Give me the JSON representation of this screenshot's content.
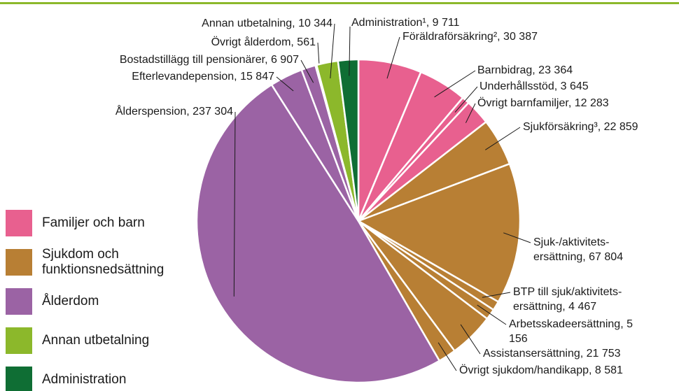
{
  "chart_data": {
    "type": "pie",
    "categories": [
      "Föräldraförsäkring²",
      "Barnbidrag",
      "Underhållsstöd",
      "Övrigt barnfamiljer",
      "Sjukförsäkring³",
      "Sjuk-/aktivitets-\nersättning",
      "BTP till sjuk/aktivitets-\nersättning",
      "Arbetsskadeersättning",
      "Assistansersättning",
      "Övrigt sjukdom/handikapp",
      "Ålderspension",
      "Efterlevandepension",
      "Bostadstillägg till pensionärer",
      "Övrigt ålderdom",
      "Annan utbetalning",
      "Administration¹"
    ],
    "values": [
      30387,
      23364,
      3645,
      12283,
      22859,
      67804,
      4467,
      5156,
      21753,
      8581,
      237304,
      15847,
      6907,
      561,
      10344,
      9711
    ],
    "value_labels": [
      "30 387",
      "23 364",
      "3 645",
      "12 283",
      "22 859",
      "67 804",
      "4 467",
      "5 156",
      "21 753",
      "8 581",
      "237 304",
      "15 847",
      "6 907",
      "561",
      "10 344",
      "9 711"
    ],
    "separator": ", ",
    "colors": [
      "#e8608f",
      "#e8608f",
      "#e8608f",
      "#e8608f",
      "#b87f34",
      "#b87f34",
      "#b87f34",
      "#b87f34",
      "#b87f34",
      "#b87f34",
      "#9b63a4",
      "#9b63a4",
      "#9b63a4",
      "#9b63a4",
      "#8cb82b",
      "#0f6e34"
    ],
    "legend": [
      {
        "name": "Familjer och barn",
        "color": "#e8608f"
      },
      {
        "name": "Sjukdom och funktionsnedsättning",
        "color": "#b87f34"
      },
      {
        "name": "Ålderdom",
        "color": "#9b63a4"
      },
      {
        "name": "Annan utbetalning",
        "color": "#8cb82b"
      },
      {
        "name": "Administration",
        "color": "#0f6e34"
      }
    ]
  }
}
